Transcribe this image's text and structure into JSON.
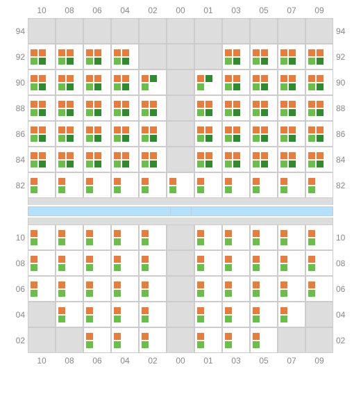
{
  "columns": [
    "10",
    "08",
    "06",
    "04",
    "02",
    "00",
    "01",
    "03",
    "05",
    "07",
    "09"
  ],
  "colors": {
    "orange": "#e87c3b",
    "lightgreen": "#6abf4b",
    "darkgreen": "#2e8b2e",
    "empty_bg": "#dddddd",
    "cell_bg": "#ffffff",
    "border": "#cccccc",
    "label": "#888888",
    "bar": "#b3e0ff"
  },
  "seat_patterns": {
    "A": [
      [
        "orange",
        "orange"
      ],
      [
        "lightgreen",
        "darkgreen"
      ]
    ],
    "B": [
      [
        "orange"
      ],
      [
        "lightgreen"
      ]
    ],
    "C": [
      [
        "orange",
        "darkgreen"
      ],
      [
        "lightgreen"
      ]
    ],
    "E": []
  },
  "sections": [
    {
      "rows": [
        {
          "label": "94",
          "cells": [
            "E",
            "E",
            "E",
            "E",
            "E",
            "E",
            "E",
            "E",
            "E",
            "E",
            "E"
          ]
        },
        {
          "label": "92",
          "cells": [
            "A",
            "A",
            "A",
            "A",
            "E",
            "E",
            "E",
            "A",
            "A",
            "A",
            "A"
          ]
        },
        {
          "label": "90",
          "cells": [
            "A",
            "A",
            "A",
            "A",
            "C",
            "E",
            "C",
            "A",
            "A",
            "A",
            "A"
          ]
        },
        {
          "label": "88",
          "cells": [
            "A",
            "A",
            "A",
            "A",
            "A",
            "E",
            "A",
            "A",
            "A",
            "A",
            "A"
          ]
        },
        {
          "label": "86",
          "cells": [
            "A",
            "A",
            "A",
            "A",
            "A",
            "E",
            "A",
            "A",
            "A",
            "A",
            "A"
          ]
        },
        {
          "label": "84",
          "cells": [
            "A",
            "A",
            "A",
            "A",
            "A",
            "E",
            "A",
            "A",
            "A",
            "A",
            "A"
          ]
        },
        {
          "label": "82",
          "cells": [
            "B",
            "B",
            "B",
            "B",
            "B",
            "B",
            "B",
            "B",
            "B",
            "B",
            "B"
          ]
        }
      ]
    },
    {
      "rows": [
        {
          "label": "10",
          "cells": [
            "B",
            "B",
            "B",
            "B",
            "B",
            "E",
            "B",
            "B",
            "B",
            "B",
            "B"
          ]
        },
        {
          "label": "08",
          "cells": [
            "B",
            "B",
            "B",
            "B",
            "B",
            "E",
            "B",
            "B",
            "B",
            "B",
            "B"
          ]
        },
        {
          "label": "06",
          "cells": [
            "B",
            "B",
            "B",
            "B",
            "B",
            "E",
            "B",
            "B",
            "B",
            "B",
            "B"
          ]
        },
        {
          "label": "04",
          "cells": [
            "E",
            "B",
            "B",
            "B",
            "B",
            "E",
            "B",
            "B",
            "B",
            "B",
            "E"
          ]
        },
        {
          "label": "02",
          "cells": [
            "E",
            "E",
            "B",
            "B",
            "B",
            "E",
            "B",
            "B",
            "B",
            "E",
            "E"
          ]
        }
      ]
    }
  ],
  "mid_bars": [
    "wide",
    "narrow",
    "wide"
  ]
}
